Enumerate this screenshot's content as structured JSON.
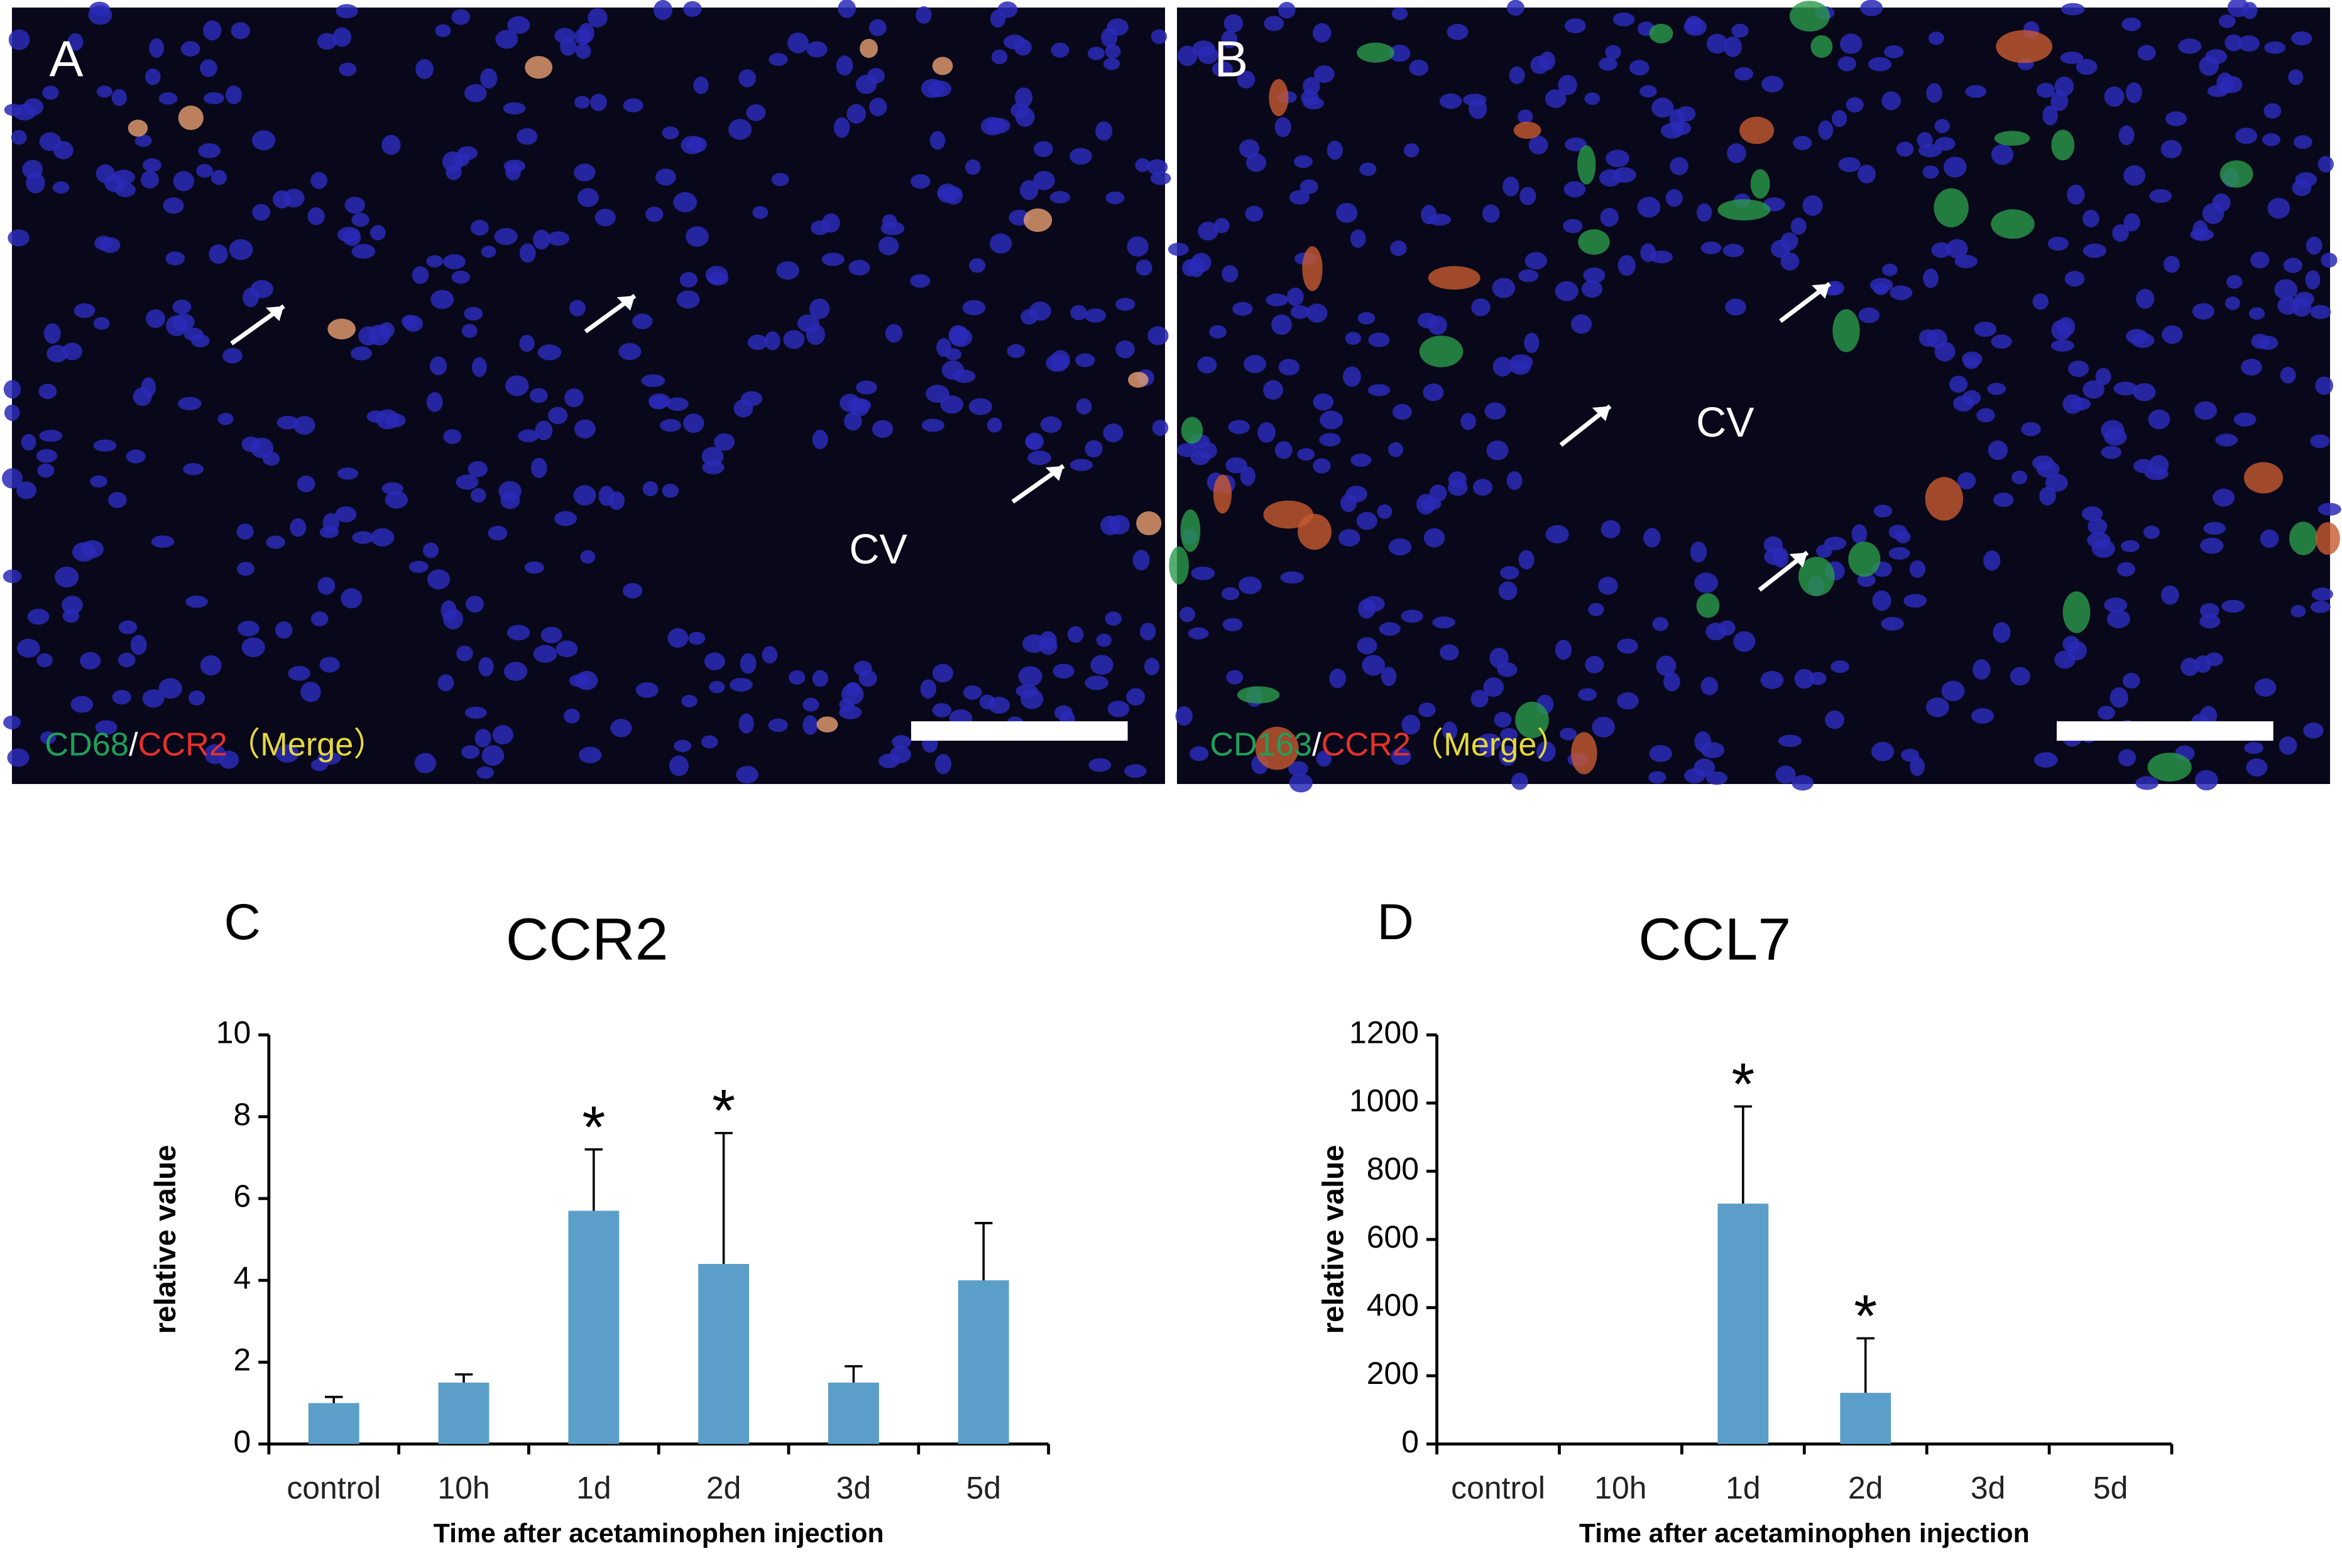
{
  "images": [
    {
      "label": "A",
      "region": "CV",
      "stain": [
        "CD68",
        "/",
        "CCR2",
        "（Merge）"
      ]
    },
    {
      "label": "B",
      "region": "CV",
      "stain": [
        "CD163",
        "/",
        "CCR2",
        "（Merge）"
      ]
    }
  ],
  "chart_data": [
    {
      "type": "bar",
      "panel": "C",
      "title": "CCR2",
      "xlabel": "Time after acetaminophen injection",
      "ylabel": "relative value",
      "categories": [
        "control",
        "10h",
        "1d",
        "2d",
        "3d",
        "5d"
      ],
      "values": [
        1.0,
        1.5,
        5.7,
        4.4,
        1.5,
        4.0
      ],
      "errors": [
        0.15,
        0.2,
        1.5,
        3.2,
        0.4,
        1.4
      ],
      "markers": [
        null,
        null,
        "*",
        "*",
        null,
        null
      ],
      "color": "#5b9ec9",
      "ylim": [
        0,
        10
      ],
      "yticks": [
        0,
        2,
        4,
        6,
        8,
        10
      ]
    },
    {
      "type": "bar",
      "panel": "D",
      "title": "CCL7",
      "xlabel": "Time after acetaminophen injection",
      "ylabel": "relative value",
      "categories": [
        "control",
        "10h",
        "1d",
        "2d",
        "3d",
        "5d"
      ],
      "values": [
        0,
        0,
        705,
        150,
        0,
        0
      ],
      "errors": [
        0,
        0,
        285,
        160,
        0,
        0
      ],
      "markers": [
        null,
        null,
        "*",
        "*",
        null,
        null
      ],
      "color": "#5b9ec9",
      "ylim": [
        0,
        1200
      ],
      "yticks": [
        0,
        200,
        400,
        600,
        800,
        1000,
        1200
      ]
    }
  ]
}
